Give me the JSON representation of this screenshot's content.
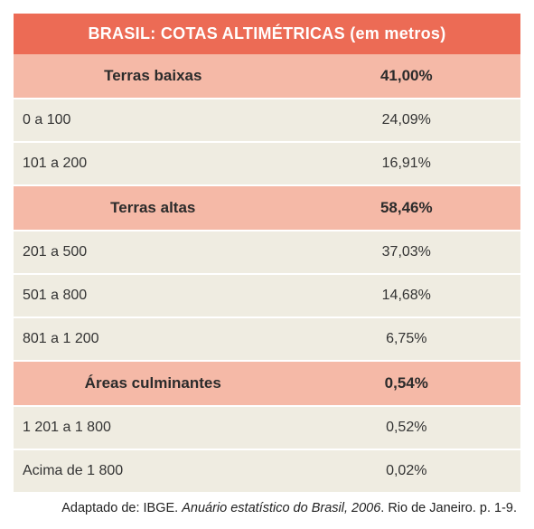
{
  "table": {
    "title": "BRASIL: COTAS ALTIMÉTRICAS (em metros)",
    "title_bg": "#ec6b55",
    "title_color": "#ffffff",
    "section_bg": "#f5b9a7",
    "data_bg": "#efece1",
    "border_color": "#ffffff",
    "rows": [
      {
        "type": "section",
        "label": "Terras baixas",
        "value": "41,00%"
      },
      {
        "type": "data",
        "label": "0 a 100",
        "value": "24,09%"
      },
      {
        "type": "data",
        "label": "101 a 200",
        "value": "16,91%"
      },
      {
        "type": "section",
        "label": "Terras altas",
        "value": "58,46%"
      },
      {
        "type": "data",
        "label": "201 a 500",
        "value": "37,03%"
      },
      {
        "type": "data",
        "label": "501 a 800",
        "value": "14,68%"
      },
      {
        "type": "data",
        "label": "801 a 1 200",
        "value": "6,75%"
      },
      {
        "type": "section",
        "label": "Áreas culminantes",
        "value": "0,54%"
      },
      {
        "type": "data",
        "label": "1 201 a 1 800",
        "value": "0,52%"
      },
      {
        "type": "data",
        "label": "Acima de 1 800",
        "value": "0,02%"
      }
    ]
  },
  "source": {
    "prefix": "Adaptado de: IBGE. ",
    "italic": "Anuário estatístico do Brasil, 2006",
    "suffix": ". Rio de Janeiro. p. 1-9."
  }
}
